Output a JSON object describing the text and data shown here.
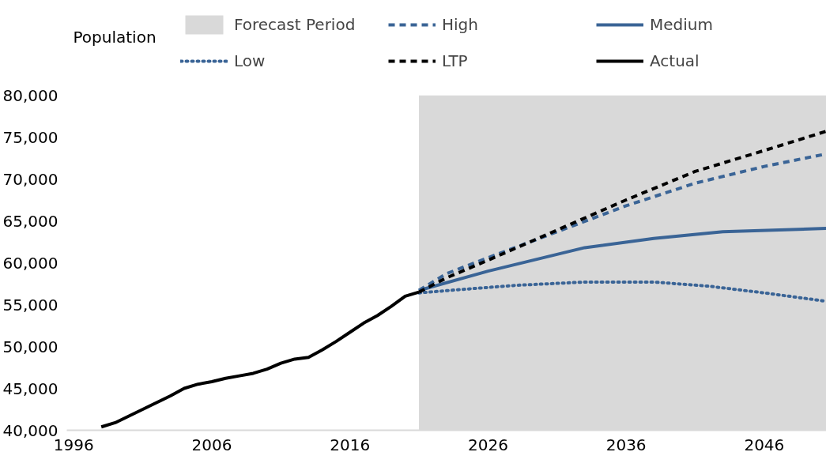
{
  "chart_data": {
    "type": "line",
    "ylabel": "Population",
    "xlim": [
      1995.5,
      2050.5
    ],
    "xticks": [
      1996,
      2006,
      2016,
      2026,
      2036,
      2046
    ],
    "ylim": [
      40000,
      80000
    ],
    "yticks": [
      {
        "value": 40000,
        "label": "40,000"
      },
      {
        "value": 45000,
        "label": "45,000"
      },
      {
        "value": 50000,
        "label": "50,000"
      },
      {
        "value": 55000,
        "label": "55,000"
      },
      {
        "value": 60000,
        "label": "60,000"
      },
      {
        "value": 65000,
        "label": "65,000"
      },
      {
        "value": 70000,
        "label": "70,000"
      },
      {
        "value": 75000,
        "label": "75,000"
      },
      {
        "value": 80000,
        "label": "80,000"
      }
    ],
    "grid": false,
    "legend": "top",
    "bands": [
      {
        "axis": "x",
        "from": 2021,
        "to": 2050.5,
        "label": "Forecast Period",
        "color": "#d9d9d9"
      }
    ],
    "series": [
      {
        "name": "High",
        "color": "#3a6496",
        "line_style": "dashed",
        "x": [
          2021,
          2023,
          2026,
          2031,
          2036,
          2041,
          2046,
          2050.5
        ],
        "values": [
          56700,
          58700,
          60600,
          63700,
          66800,
          69500,
          71500,
          73000
        ]
      },
      {
        "name": "Medium",
        "color": "#3a6496",
        "line_style": "solid",
        "x": [
          2021,
          2026,
          2033,
          2038,
          2043,
          2050.5
        ],
        "values": [
          56700,
          59000,
          61800,
          62900,
          63700,
          64100
        ]
      },
      {
        "name": "Low",
        "color": "#3a6496",
        "line_style": "dotted",
        "x": [
          2021,
          2024,
          2028,
          2033,
          2038,
          2042,
          2046,
          2050.5
        ],
        "values": [
          56400,
          56800,
          57300,
          57700,
          57700,
          57200,
          56400,
          55400
        ]
      },
      {
        "name": "LTP",
        "color": "#000000",
        "line_style": "dashed",
        "x": [
          2021,
          2023,
          2026,
          2031,
          2036,
          2041,
          2046,
          2050.5
        ],
        "values": [
          56500,
          58200,
          60300,
          63900,
          67500,
          70900,
          73400,
          75700
        ]
      },
      {
        "name": "Actual",
        "color": "#000000",
        "line_style": "solid",
        "x": [
          1998,
          1999,
          2000,
          2001,
          2002,
          2003,
          2004,
          2005,
          2006,
          2007,
          2008,
          2009,
          2010,
          2011,
          2012,
          2013,
          2014,
          2015,
          2016,
          2017,
          2018,
          2019,
          2020,
          2021
        ],
        "values": [
          40400,
          40900,
          41700,
          42500,
          43300,
          44100,
          45000,
          45500,
          45800,
          46200,
          46500,
          46800,
          47300,
          48000,
          48500,
          48700,
          49600,
          50600,
          51700,
          52800,
          53700,
          54800,
          56000,
          56500
        ]
      }
    ]
  }
}
